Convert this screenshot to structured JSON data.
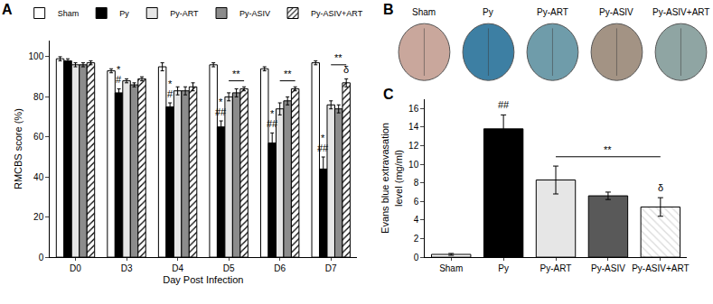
{
  "chart_data": [
    {
      "title": "A",
      "type": "bar",
      "categories": [
        "D0",
        "D3",
        "D4",
        "D5",
        "D6",
        "D7"
      ],
      "x_label": "Day Post Infection",
      "y_label": "RMCBS score (%)",
      "ylim": [
        0,
        108
      ],
      "yticks": [
        0,
        20,
        40,
        60,
        80,
        100
      ],
      "grid": false,
      "legend": "top",
      "series": [
        {
          "name": "Sham",
          "color": "#ffffff",
          "marker": "solid",
          "values": [
            99,
            93,
            95,
            96,
            94,
            97
          ],
          "errors": [
            1,
            1,
            2,
            1,
            1,
            1
          ]
        },
        {
          "name": "Py",
          "color": "#000000",
          "marker": "solid",
          "values": [
            98,
            82,
            75,
            65,
            57,
            44
          ],
          "errors": [
            1,
            2,
            2,
            3,
            5,
            6
          ]
        },
        {
          "name": "Py-ART",
          "color": "#e6e6e6",
          "marker": "solid",
          "values": [
            96,
            88,
            83,
            80,
            74,
            76
          ],
          "errors": [
            1,
            1,
            2,
            2,
            3,
            2
          ]
        },
        {
          "name": "Py-ASIV",
          "color": "#8c8c8c",
          "marker": "solid",
          "values": [
            96,
            86,
            83,
            82,
            78,
            74
          ],
          "errors": [
            1,
            1,
            2,
            2,
            2,
            2
          ]
        },
        {
          "name": "Py-ASIV+ART",
          "color": "#ffffff",
          "marker": "hatched",
          "values": [
            97,
            89,
            85,
            84,
            84,
            87
          ],
          "errors": [
            1,
            1,
            2,
            1,
            1,
            2
          ]
        }
      ],
      "annotations": [
        {
          "text": "#",
          "category": "D3",
          "series": "Py",
          "y": 85
        },
        {
          "text": "*",
          "category": "D3",
          "series": "Py",
          "y": 90
        },
        {
          "text": "#",
          "category": "D4",
          "series": "Py",
          "y": 78
        },
        {
          "text": "*",
          "category": "D4",
          "series": "Py",
          "y": 83
        },
        {
          "text": "##",
          "category": "D5",
          "series": "Py",
          "y": 69
        },
        {
          "text": "*",
          "category": "D5",
          "series": "Py",
          "y": 74
        },
        {
          "text": "##",
          "category": "D6",
          "series": "Py",
          "y": 63
        },
        {
          "text": "*",
          "category": "D6",
          "series": "Py",
          "y": 68
        },
        {
          "text": "##",
          "category": "D7",
          "series": "Py",
          "y": 51
        },
        {
          "text": "*",
          "category": "D7",
          "series": "Py",
          "y": 56
        },
        {
          "text": "δ",
          "category": "D7",
          "series": "Py-ASIV+ART",
          "y": 90
        }
      ],
      "brackets": [
        {
          "category": "D5",
          "from": "Py-ART",
          "to": "Py-ASIV+ART",
          "y": 88,
          "text": "**"
        },
        {
          "category": "D6",
          "from": "Py-ART",
          "to": "Py-ASIV+ART",
          "y": 88,
          "text": "**"
        },
        {
          "category": "D7",
          "from": "Py-ART",
          "to": "Py-ASIV+ART",
          "y": 96,
          "text": "**"
        }
      ]
    },
    {
      "title": "B",
      "type": "image",
      "labels": [
        "Sham",
        "Py",
        "Py-ART",
        "Py-ASIV",
        "Py-ASIV+ART"
      ],
      "colors": [
        "#c9a79c",
        "#3d7fa3",
        "#6f9caa",
        "#a39384",
        "#8fa5a3"
      ]
    },
    {
      "title": "C",
      "type": "bar",
      "categories": [
        "Sham",
        "Py",
        "Py-ART",
        "Py-ASIV",
        "Py-ASIV+ART"
      ],
      "y_label": "Evans blue extravasation\nlevel (mg/ml)",
      "ylim": [
        0,
        17
      ],
      "yticks": [
        0,
        2,
        4,
        6,
        8,
        10,
        12,
        14,
        16
      ],
      "grid": false,
      "values": [
        0.3,
        13.8,
        8.3,
        6.6,
        5.4
      ],
      "errors": [
        0.1,
        1.5,
        1.5,
        0.4,
        1.0
      ],
      "colors": [
        "#ffffff",
        "#000000",
        "#e6e6e6",
        "#595959",
        "#d9d9d9"
      ],
      "marker": [
        "solid",
        "solid",
        "solid",
        "solid",
        "hatched"
      ],
      "annotations": [
        {
          "text": "##",
          "category": "Py",
          "y": 15.6
        },
        {
          "text": "δ",
          "category": "Py-ASIV+ART",
          "y": 6.7
        }
      ],
      "brackets": [
        {
          "from": "Py-ART",
          "to": "Py-ASIV+ART",
          "y": 10.8,
          "text": "**"
        }
      ]
    }
  ]
}
